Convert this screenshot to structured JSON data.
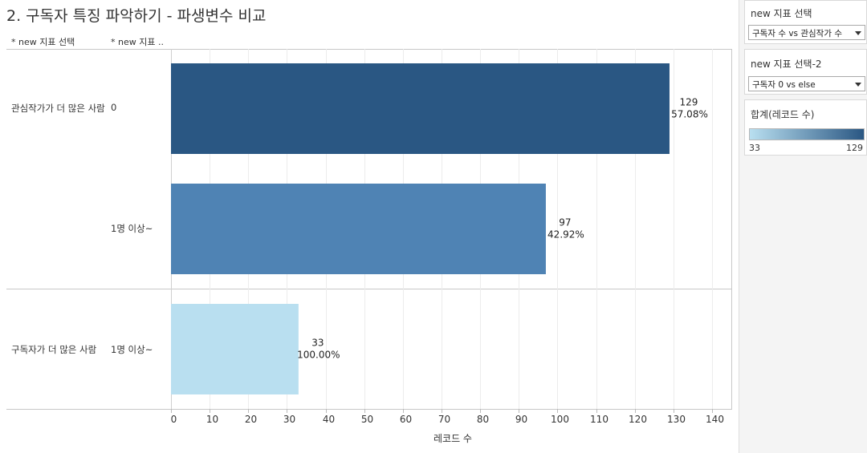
{
  "title": "2. 구독자 특징 파악하기 - 파생변수 비교",
  "row_headers": [
    "* new 지표 선택",
    "* new 지표 .."
  ],
  "groups": [
    {
      "label": "관심작가가 더 많은 사람",
      "rows": [
        {
          "label": "0",
          "value": 129,
          "pct": "57.08%"
        },
        {
          "label": "1명 이상~",
          "value": 97,
          "pct": "42.92%"
        }
      ]
    },
    {
      "label": "구독자가 더 많은 사람",
      "rows": [
        {
          "label": "1명 이상~",
          "value": 33,
          "pct": "100.00%"
        }
      ]
    }
  ],
  "chart_data": {
    "type": "bar",
    "orientation": "horizontal",
    "categories": [
      "관심작가가 더 많은 사람 | 0",
      "관심작가가 더 많은 사람 | 1명 이상~",
      "구독자가 더 많은 사람 | 1명 이상~"
    ],
    "values": [
      129,
      97,
      33
    ],
    "value_labels": [
      "129",
      "97",
      "33"
    ],
    "percent_labels": [
      "57.08%",
      "42.92%",
      "100.00%"
    ],
    "xlabel": "레코드 수",
    "xlim": [
      0,
      145
    ],
    "xticks": [
      0,
      10,
      20,
      30,
      40,
      50,
      60,
      70,
      80,
      90,
      100,
      110,
      120,
      130,
      140
    ],
    "grid": true,
    "color_range": {
      "min": 33,
      "max": 129,
      "min_color": "#b9dff0",
      "max_color": "#2a5783"
    }
  },
  "sidebar": {
    "filter1": {
      "title": "new 지표 선택",
      "value": "구독자 수 vs 관심작가 수"
    },
    "filter2": {
      "title": "new 지표 선택-2",
      "value": "구독자 0 vs else"
    },
    "legend": {
      "title": "합계(레코드 수)",
      "min": "33",
      "max": "129"
    }
  },
  "colors": {
    "bar_dark": "#2a5783",
    "bar_mid": "#4f83b4",
    "bar_light": "#b9dff0",
    "grid": "#ececec",
    "separator": "#c8c8c8"
  }
}
